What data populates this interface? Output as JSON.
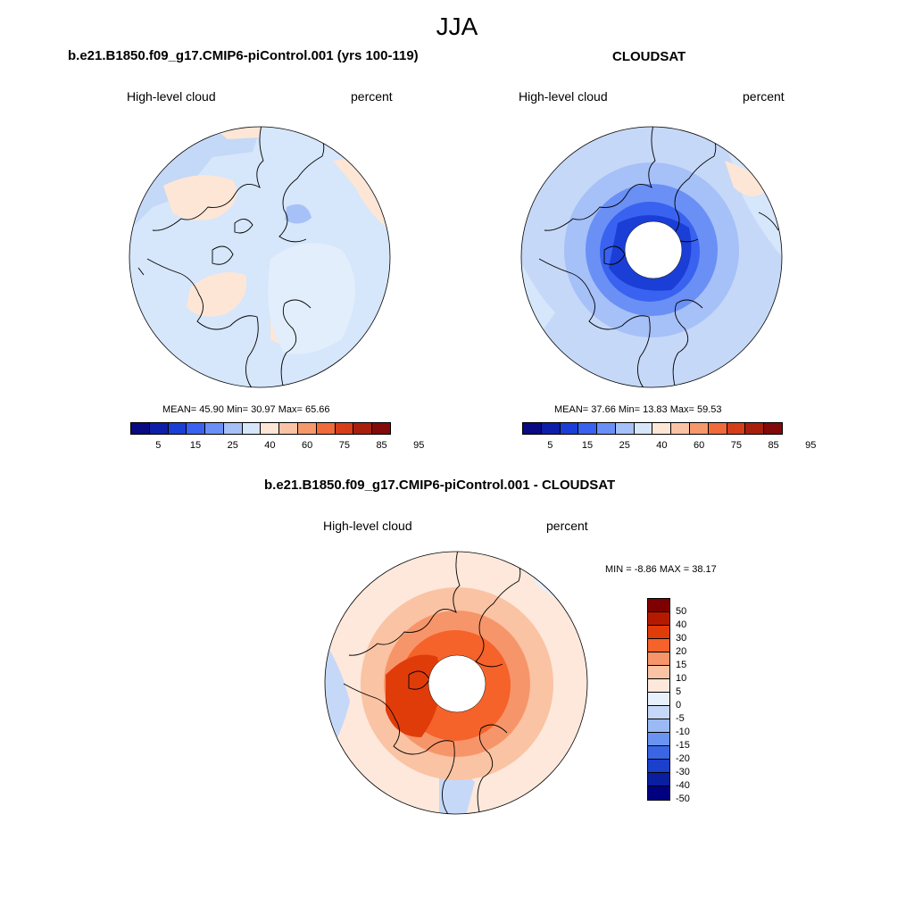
{
  "season": "JJA",
  "chart_data": [
    {
      "type": "heatmap",
      "projection": "north-polar-stereographic",
      "title": "b.e21.B1850.f09_g17.CMIP6-piControl.001 (yrs 100-119)",
      "variable": "High-level cloud",
      "units": "percent",
      "stats": {
        "mean_label": "MEAN=",
        "mean": "45.90",
        "min_label": "Min=",
        "min": "30.97",
        "max_label": "Max=",
        "max": "65.66"
      },
      "colorbar_ticks": [
        "5",
        "15",
        "25",
        "40",
        "60",
        "75",
        "85",
        "95"
      ]
    },
    {
      "type": "heatmap",
      "projection": "north-polar-stereographic",
      "title": "CLOUDSAT",
      "variable": "High-level cloud",
      "units": "percent",
      "stats": {
        "mean_label": "MEAN=",
        "mean": "37.66",
        "min_label": "Min=",
        "min": "13.83",
        "max_label": "Max=",
        "max": "59.53"
      },
      "colorbar_ticks": [
        "5",
        "15",
        "25",
        "40",
        "60",
        "75",
        "85",
        "95"
      ]
    },
    {
      "type": "heatmap",
      "projection": "north-polar-stereographic",
      "title": "b.e21.B1850.f09_g17.CMIP6-piControl.001 - CLOUDSAT",
      "variable": "High-level cloud",
      "units": "percent",
      "stats": {
        "min_label": "MIN =",
        "min": "-8.86",
        "max_label": "MAX =",
        "max": "38.17"
      },
      "colorbar_ticks": [
        "50",
        "40",
        "30",
        "20",
        "15",
        "10",
        "5",
        "0",
        "-5",
        "-10",
        "-15",
        "-20",
        "-30",
        "-40",
        "-50"
      ]
    }
  ],
  "colors": {
    "abs_scale": [
      "#0a0a82",
      "#0d1ea8",
      "#1a3ed6",
      "#3a62f0",
      "#6a90f5",
      "#a6c0f8",
      "#d6e6fb",
      "#fde6d6",
      "#fbc3a6",
      "#f5996a",
      "#f06a3a",
      "#d63e1a",
      "#a8200d",
      "#820a0a"
    ],
    "diff_scale": [
      "#7f0000",
      "#b51a00",
      "#e03c0a",
      "#f5622a",
      "#f7956a",
      "#fac3a3",
      "#fde8db",
      "#e8f0fb",
      "#c6d8f8",
      "#9bbaf5",
      "#6a94f0",
      "#3a66e6",
      "#1a40cc",
      "#0a1ea0",
      "#000080"
    ],
    "coast": "#000000"
  }
}
